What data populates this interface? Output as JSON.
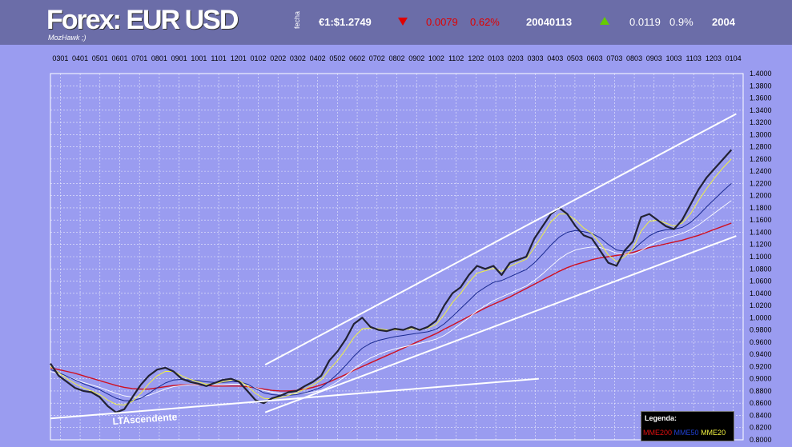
{
  "header": {
    "title": "Forex: EUR USD",
    "author": "MozHawk ;)",
    "fecha_label": "fecha",
    "rate_label": "€1:$1.2749",
    "day_change": "0.0079",
    "day_change_pct": "0.62%",
    "date": "20040113",
    "year_change": "0.0119",
    "year_change_pct": "0.9%",
    "year": "2004"
  },
  "colors": {
    "background": "#9a9cf0",
    "header": "#6b6da8",
    "price": "#222233",
    "mme200": "#d01020",
    "mme50": "#1a2a90",
    "mme20": "#f0f040",
    "trend": "#ffffff",
    "down": "#e00000",
    "up": "#66cc00"
  },
  "chart_data": {
    "type": "line",
    "x_tick_labels": [
      "0301",
      "0401",
      "0501",
      "0601",
      "0701",
      "0801",
      "0901",
      "1001",
      "1101",
      "1201",
      "0102",
      "0202",
      "0302",
      "0402",
      "0502",
      "0602",
      "0702",
      "0802",
      "0902",
      "1002",
      "1102",
      "1202",
      "0103",
      "0203",
      "0303",
      "0403",
      "0503",
      "0603",
      "0703",
      "0803",
      "0903",
      "1003",
      "1103",
      "1203",
      "0104"
    ],
    "ylim": [
      0.8,
      1.4
    ],
    "y_tick_step": 0.02,
    "grid": true,
    "series": [
      {
        "name": "",
        "key": "price",
        "values": [
          0.925,
          0.905,
          0.895,
          0.885,
          0.88,
          0.878,
          0.87,
          0.855,
          0.845,
          0.85,
          0.87,
          0.89,
          0.905,
          0.915,
          0.918,
          0.912,
          0.9,
          0.895,
          0.892,
          0.888,
          0.893,
          0.898,
          0.9,
          0.895,
          0.88,
          0.865,
          0.86,
          0.868,
          0.872,
          0.878,
          0.88,
          0.888,
          0.895,
          0.905,
          0.93,
          0.945,
          0.965,
          0.99,
          1.0,
          0.985,
          0.98,
          0.978,
          0.982,
          0.98,
          0.985,
          0.98,
          0.985,
          0.995,
          1.02,
          1.04,
          1.05,
          1.07,
          1.085,
          1.08,
          1.085,
          1.07,
          1.09,
          1.095,
          1.1,
          1.13,
          1.15,
          1.17,
          1.18,
          1.17,
          1.15,
          1.135,
          1.13,
          1.11,
          1.09,
          1.085,
          1.11,
          1.125,
          1.165,
          1.17,
          1.16,
          1.15,
          1.145,
          1.16,
          1.185,
          1.21,
          1.23,
          1.245,
          1.26,
          1.275
        ]
      },
      {
        "name": "MME20",
        "key": "mme20",
        "values": [
          0.92,
          0.91,
          0.9,
          0.892,
          0.885,
          0.88,
          0.874,
          0.865,
          0.858,
          0.857,
          0.863,
          0.876,
          0.892,
          0.905,
          0.912,
          0.912,
          0.905,
          0.899,
          0.895,
          0.891,
          0.892,
          0.895,
          0.898,
          0.897,
          0.888,
          0.876,
          0.868,
          0.867,
          0.869,
          0.873,
          0.877,
          0.883,
          0.89,
          0.898,
          0.915,
          0.93,
          0.948,
          0.968,
          0.982,
          0.983,
          0.982,
          0.98,
          0.98,
          0.98,
          0.982,
          0.981,
          0.983,
          0.989,
          1.005,
          1.025,
          1.04,
          1.058,
          1.073,
          1.077,
          1.081,
          1.076,
          1.084,
          1.09,
          1.096,
          1.115,
          1.136,
          1.157,
          1.17,
          1.17,
          1.16,
          1.147,
          1.138,
          1.122,
          1.103,
          1.092,
          1.1,
          1.113,
          1.142,
          1.158,
          1.16,
          1.155,
          1.15,
          1.155,
          1.17,
          1.192,
          1.212,
          1.23,
          1.246,
          1.26
        ]
      },
      {
        "name": "MME50",
        "key": "mme50",
        "values": [
          0.915,
          0.91,
          0.904,
          0.898,
          0.892,
          0.887,
          0.882,
          0.875,
          0.868,
          0.864,
          0.864,
          0.868,
          0.876,
          0.885,
          0.893,
          0.898,
          0.899,
          0.898,
          0.897,
          0.895,
          0.894,
          0.894,
          0.895,
          0.895,
          0.891,
          0.884,
          0.877,
          0.874,
          0.873,
          0.873,
          0.874,
          0.877,
          0.881,
          0.886,
          0.896,
          0.908,
          0.922,
          0.937,
          0.95,
          0.958,
          0.963,
          0.966,
          0.969,
          0.971,
          0.973,
          0.975,
          0.977,
          0.981,
          0.99,
          1.002,
          1.015,
          1.028,
          1.041,
          1.05,
          1.058,
          1.061,
          1.067,
          1.073,
          1.079,
          1.09,
          1.104,
          1.119,
          1.132,
          1.14,
          1.143,
          1.141,
          1.138,
          1.131,
          1.12,
          1.111,
          1.109,
          1.111,
          1.123,
          1.134,
          1.141,
          1.144,
          1.145,
          1.148,
          1.156,
          1.168,
          1.182,
          1.195,
          1.208,
          1.22
        ]
      },
      {
        "name": "",
        "key": "white_ma",
        "values": [
          0.912,
          0.908,
          0.904,
          0.899,
          0.894,
          0.89,
          0.886,
          0.881,
          0.876,
          0.872,
          0.87,
          0.87,
          0.873,
          0.878,
          0.883,
          0.887,
          0.889,
          0.89,
          0.89,
          0.89,
          0.89,
          0.89,
          0.891,
          0.891,
          0.889,
          0.885,
          0.881,
          0.878,
          0.876,
          0.875,
          0.875,
          0.876,
          0.878,
          0.881,
          0.887,
          0.895,
          0.905,
          0.916,
          0.926,
          0.934,
          0.94,
          0.945,
          0.949,
          0.952,
          0.955,
          0.958,
          0.961,
          0.965,
          0.971,
          0.98,
          0.99,
          1.0,
          1.011,
          1.02,
          1.028,
          1.034,
          1.04,
          1.046,
          1.052,
          1.061,
          1.072,
          1.084,
          1.096,
          1.105,
          1.111,
          1.114,
          1.116,
          1.115,
          1.111,
          1.106,
          1.104,
          1.104,
          1.11,
          1.118,
          1.125,
          1.13,
          1.134,
          1.138,
          1.144,
          1.152,
          1.162,
          1.172,
          1.182,
          1.192
        ]
      },
      {
        "name": "MME200",
        "key": "mme200",
        "values": [
          0.918,
          0.915,
          0.912,
          0.909,
          0.905,
          0.901,
          0.897,
          0.893,
          0.889,
          0.886,
          0.884,
          0.883,
          0.883,
          0.885,
          0.887,
          0.889,
          0.89,
          0.89,
          0.89,
          0.889,
          0.888,
          0.888,
          0.888,
          0.888,
          0.887,
          0.885,
          0.883,
          0.881,
          0.88,
          0.88,
          0.881,
          0.883,
          0.886,
          0.89,
          0.895,
          0.901,
          0.907,
          0.914,
          0.92,
          0.926,
          0.932,
          0.938,
          0.944,
          0.95,
          0.956,
          0.962,
          0.968,
          0.974,
          0.981,
          0.988,
          0.995,
          1.002,
          1.009,
          1.016,
          1.022,
          1.028,
          1.034,
          1.041,
          1.048,
          1.055,
          1.062,
          1.069,
          1.076,
          1.082,
          1.087,
          1.091,
          1.095,
          1.098,
          1.1,
          1.102,
          1.104,
          1.107,
          1.111,
          1.115,
          1.118,
          1.121,
          1.124,
          1.127,
          1.131,
          1.135,
          1.14,
          1.145,
          1.15,
          1.155
        ]
      }
    ],
    "trendlines": [
      {
        "x": [
          0.0,
          0.705
        ],
        "y": [
          0.835,
          0.9
        ],
        "label": "LTAscendente"
      },
      {
        "x": [
          0.31,
          0.99
        ],
        "y": [
          0.845,
          1.134
        ]
      },
      {
        "x": [
          0.31,
          0.99
        ],
        "y": [
          0.923,
          1.334
        ]
      }
    ],
    "legend": {
      "title": "Legenda:",
      "placement": "bottom-right"
    }
  }
}
